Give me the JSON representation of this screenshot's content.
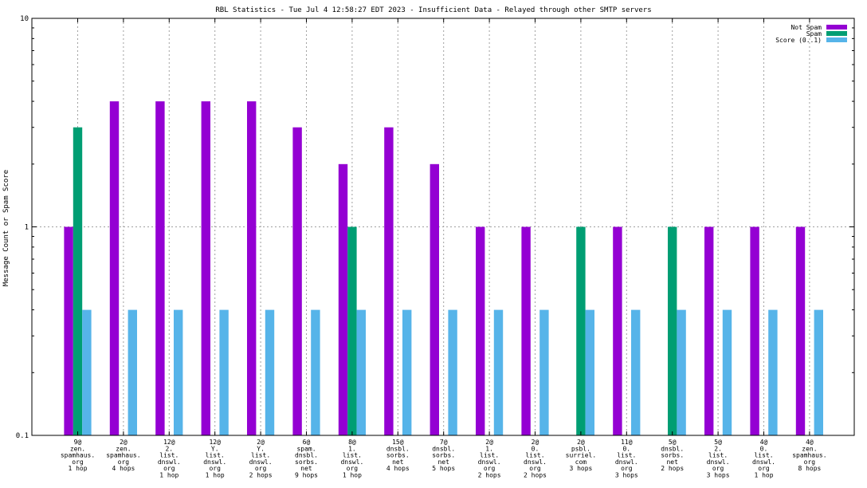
{
  "chart_data": {
    "type": "bar",
    "title": "RBL Statistics - Tue Jul  4 12:58:27 EDT 2023 - Insufficient Data - Relayed through other SMTP servers",
    "xlabel": "",
    "ylabel": "Message Count or Spam Score",
    "yscale": "log",
    "ylim": [
      0.1,
      10
    ],
    "yticks": [
      {
        "value": 0.1,
        "label": "0.1"
      },
      {
        "value": 1,
        "label": "1"
      },
      {
        "value": 10,
        "label": "10"
      }
    ],
    "grid": true,
    "legend_position": "top-right",
    "categories": [
      [
        "9@",
        "zen.",
        "spamhaus.",
        "org",
        "1 hop"
      ],
      [
        "2@",
        "zen.",
        "spamhaus.",
        "org",
        "4 hops"
      ],
      [
        "12@",
        "2.",
        "list.",
        "dnswl.",
        "org",
        "1 hop"
      ],
      [
        "12@",
        "Y.",
        "list.",
        "dnswl.",
        "org",
        "1 hop"
      ],
      [
        "2@",
        "Y.",
        "list.",
        "dnswl.",
        "org",
        "2 hops"
      ],
      [
        "6@",
        "spam.",
        "dnsbl.",
        "sorbs.",
        "net",
        "9 hops"
      ],
      [
        "8@",
        "1.",
        "list.",
        "dnswl.",
        "org",
        "1 hop"
      ],
      [
        "15@",
        "dnsbl.",
        "sorbs.",
        "net",
        "4 hops"
      ],
      [
        "7@",
        "dnsbl.",
        "sorbs.",
        "net",
        "5 hops"
      ],
      [
        "2@",
        "1.",
        "list.",
        "dnswl.",
        "org",
        "2 hops"
      ],
      [
        "2@",
        "0.",
        "list.",
        "dnswl.",
        "org",
        "2 hops"
      ],
      [
        "2@",
        "psbl.",
        "surriel.",
        "com",
        "3 hops"
      ],
      [
        "11@",
        "0.",
        "list.",
        "dnswl.",
        "org",
        "3 hops"
      ],
      [
        "5@",
        "dnsbl.",
        "sorbs.",
        "net",
        "2 hops"
      ],
      [
        "5@",
        "2.",
        "list.",
        "dnswl.",
        "org",
        "3 hops"
      ],
      [
        "4@",
        "0.",
        "list.",
        "dnswl.",
        "org",
        "1 hop"
      ],
      [
        "4@",
        "zen.",
        "spamhaus.",
        "org",
        "8 hops"
      ]
    ],
    "series": [
      {
        "name": "Not Spam",
        "color": "#9400d3",
        "values": [
          1,
          4,
          4,
          4,
          4,
          3,
          2,
          3,
          2,
          1,
          1,
          null,
          1,
          null,
          1,
          1,
          1
        ]
      },
      {
        "name": "Spam",
        "color": "#009e73",
        "values": [
          3,
          null,
          null,
          null,
          null,
          null,
          1,
          null,
          null,
          null,
          null,
          1,
          null,
          1,
          null,
          null,
          null
        ]
      },
      {
        "name": "Score (0..1)",
        "color": "#56b4e9",
        "values": [
          0.4,
          0.4,
          0.4,
          0.4,
          0.4,
          0.4,
          0.4,
          0.4,
          0.4,
          0.4,
          0.4,
          0.4,
          0.4,
          0.4,
          0.4,
          0.4,
          0.4
        ]
      }
    ]
  }
}
